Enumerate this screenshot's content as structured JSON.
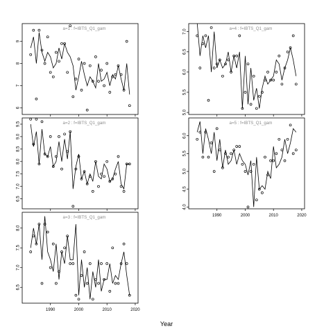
{
  "figure": {
    "xlabel": "Year"
  },
  "chart_data": [
    {
      "type": "line",
      "title": "a=1 : f=IBTS_Q1_gam",
      "xlim": [
        1980,
        2021
      ],
      "ylim": [
        5.7,
        9.8
      ],
      "x_ticks": [
        1990,
        2000,
        2010,
        2020
      ],
      "y_ticks": [
        6,
        7,
        8,
        9
      ],
      "show_x_tick_labels": false,
      "years": [
        1983,
        1984,
        1985,
        1986,
        1987,
        1988,
        1989,
        1990,
        1991,
        1992,
        1993,
        1994,
        1995,
        1996,
        1997,
        1998,
        1999,
        2000,
        2001,
        2002,
        2003,
        2004,
        2005,
        2006,
        2007,
        2008,
        2009,
        2010,
        2011,
        2012,
        2013,
        2014,
        2015,
        2016,
        2017,
        2018
      ],
      "series": [
        {
          "role": "fitted",
          "values": [
            8.7,
            9.2,
            8.0,
            9.4,
            8.5,
            8.1,
            8.5,
            8.3,
            7.8,
            8.0,
            8.7,
            8.2,
            8.9,
            8.5,
            8.3,
            7.9,
            6.8,
            7.4,
            8.1,
            7.5,
            7.0,
            7.4,
            7.2,
            6.9,
            8.0,
            7.2,
            7.3,
            7.6,
            7.0,
            7.5,
            7.3,
            7.9,
            7.3,
            6.8,
            8.0,
            6.6
          ]
        },
        {
          "role": "observed",
          "values": [
            8.4,
            9.5,
            6.4,
            9.5,
            8.6,
            8.0,
            9.2,
            7.6,
            7.4,
            8.5,
            8.1,
            8.9,
            8.9,
            7.6,
            9.7,
            6.5,
            7.3,
            8.2,
            6.8,
            8.0,
            5.9,
            7.9,
            7.2,
            8.3,
            7.2,
            7.7,
            7.0,
            8.0,
            6.7,
            7.4,
            7.5,
            7.9,
            7.5,
            6.8,
            9.0,
            6.1
          ]
        }
      ]
    },
    {
      "type": "line",
      "title": "a=2 : f=IBTS_Q1_gam",
      "xlim": [
        1980,
        2021
      ],
      "ylim": [
        6.1,
        9.75
      ],
      "x_ticks": [
        1990,
        2000,
        2010,
        2020
      ],
      "y_ticks": [
        6.5,
        7.0,
        7.5,
        8.0,
        8.5,
        9.0,
        9.5
      ],
      "show_x_tick_labels": false,
      "years": [
        1983,
        1984,
        1985,
        1986,
        1987,
        1988,
        1989,
        1990,
        1991,
        1992,
        1993,
        1994,
        1995,
        1996,
        1997,
        1998,
        1999,
        2000,
        2001,
        2002,
        2003,
        2004,
        2005,
        2006,
        2007,
        2008,
        2009,
        2010,
        2011,
        2012,
        2013,
        2014,
        2015,
        2016,
        2017,
        2018
      ],
      "series": [
        {
          "role": "fitted",
          "values": [
            9.5,
            8.6,
            9.2,
            7.9,
            9.3,
            8.3,
            8.2,
            8.6,
            7.8,
            8.0,
            8.8,
            8.0,
            8.9,
            8.1,
            9.2,
            6.9,
            7.8,
            8.3,
            7.3,
            7.6,
            7.1,
            7.5,
            7.2,
            8.0,
            7.4,
            7.3,
            7.9,
            7.7,
            7.2,
            7.3,
            7.7,
            8.0,
            7.1,
            6.9,
            7.9,
            7.9
          ]
        },
        {
          "role": "observed",
          "values": [
            9.7,
            8.7,
            9.7,
            7.9,
            9.6,
            8.3,
            8.2,
            9.0,
            7.8,
            8.2,
            9.0,
            7.7,
            9.1,
            8.4,
            9.2,
            6.2,
            7.7,
            8.2,
            7.3,
            7.6,
            7.1,
            7.4,
            6.8,
            8.0,
            7.0,
            7.5,
            7.4,
            8.0,
            7.2,
            7.3,
            7.5,
            8.2,
            7.0,
            6.8,
            7.9,
            7.9
          ]
        }
      ]
    },
    {
      "type": "line",
      "title": "a=3 : f=IBTS_Q1_gam",
      "xlim": [
        1980,
        2021
      ],
      "ylim": [
        6.1,
        8.4
      ],
      "x_ticks": [
        1990,
        2000,
        2010,
        2020
      ],
      "y_ticks": [
        6.5,
        7.0,
        7.5,
        8.0
      ],
      "show_x_tick_labels": true,
      "years": [
        1983,
        1984,
        1985,
        1986,
        1987,
        1988,
        1989,
        1990,
        1991,
        1992,
        1993,
        1994,
        1995,
        1996,
        1997,
        1998,
        1999,
        2000,
        2001,
        2002,
        2003,
        2004,
        2005,
        2006,
        2007,
        2008,
        2009,
        2010,
        2011,
        2012,
        2013,
        2014,
        2015,
        2016,
        2017,
        2018
      ],
      "series": [
        {
          "role": "fitted",
          "values": [
            7.5,
            8.0,
            7.6,
            8.1,
            7.2,
            8.3,
            7.4,
            7.2,
            6.9,
            7.6,
            6.7,
            7.4,
            7.1,
            7.8,
            7.2,
            7.2,
            8.1,
            6.3,
            7.2,
            6.5,
            7.0,
            6.2,
            6.9,
            6.5,
            7.2,
            6.4,
            6.7,
            6.7,
            7.1,
            6.6,
            6.8,
            6.7,
            7.1,
            7.4,
            6.8,
            6.3
          ]
        },
        {
          "role": "observed",
          "values": [
            7.4,
            7.8,
            7.6,
            8.1,
            6.6,
            8.1,
            7.9,
            7.0,
            7.6,
            6.6,
            6.9,
            7.4,
            7.5,
            7.8,
            7.1,
            7.1,
            6.3,
            6.2,
            6.8,
            7.4,
            6.6,
            7.1,
            6.2,
            6.7,
            6.6,
            7.1,
            6.7,
            7.1,
            6.4,
            7.5,
            6.6,
            6.6,
            7.1,
            7.6,
            7.1,
            6.3
          ]
        }
      ]
    },
    {
      "type": "line",
      "title": "a=4 : f=IBTS_Q1_gam",
      "xlim": [
        1980,
        2021
      ],
      "ylim": [
        4.95,
        7.2
      ],
      "x_ticks": [
        1990,
        2000,
        2010,
        2020
      ],
      "y_ticks": [
        5.0,
        5.5,
        6.0,
        6.5,
        7.0
      ],
      "show_x_tick_labels": false,
      "years": [
        1983,
        1984,
        1985,
        1986,
        1987,
        1988,
        1989,
        1990,
        1991,
        1992,
        1993,
        1994,
        1995,
        1996,
        1997,
        1998,
        1999,
        2000,
        2001,
        2002,
        2003,
        2004,
        2005,
        2006,
        2007,
        2008,
        2009,
        2010,
        2011,
        2012,
        2013,
        2014,
        2015,
        2016,
        2017,
        2018
      ],
      "series": [
        {
          "role": "fitted",
          "values": [
            7.6,
            6.4,
            6.9,
            6.6,
            6.9,
            6.0,
            7.0,
            6.1,
            6.3,
            6.1,
            6.2,
            6.5,
            6.0,
            6.4,
            6.1,
            6.5,
            5.1,
            6.4,
            5.2,
            6.1,
            5.3,
            5.6,
            5.1,
            5.6,
            5.9,
            5.7,
            5.8,
            5.9,
            6.3,
            6.2,
            5.8,
            6.1,
            6.3,
            6.6,
            6.3,
            5.9
          ]
        },
        {
          "role": "observed",
          "values": [
            6.9,
            6.1,
            6.7,
            6.9,
            5.3,
            7.1,
            6.1,
            6.2,
            6.3,
            5.9,
            6.2,
            6.3,
            6.0,
            6.4,
            6.4,
            6.9,
            5.1,
            5.5,
            6.2,
            5.2,
            5.9,
            5.1,
            5.4,
            5.5,
            5.8,
            6.0,
            5.8,
            5.8,
            6.0,
            6.4,
            5.7,
            6.1,
            6.5,
            6.6,
            6.9,
            5.7
          ]
        }
      ]
    },
    {
      "type": "line",
      "title": "a=5 : f=IBTS_Q1_gam",
      "xlim": [
        1980,
        2021
      ],
      "ylim": [
        3.95,
        6.5
      ],
      "x_ticks": [
        1990,
        2000,
        2010,
        2020
      ],
      "y_ticks": [
        4.0,
        4.5,
        5.0,
        5.5,
        6.0
      ],
      "show_x_tick_labels": true,
      "years": [
        1983,
        1984,
        1985,
        1986,
        1987,
        1988,
        1989,
        1990,
        1991,
        1992,
        1993,
        1994,
        1995,
        1996,
        1997,
        1998,
        1999,
        2000,
        2001,
        2002,
        2003,
        2004,
        2005,
        2006,
        2007,
        2008,
        2009,
        2010,
        2011,
        2012,
        2013,
        2014,
        2015,
        2016,
        2017,
        2018
      ],
      "series": [
        {
          "role": "fitted",
          "values": [
            6.1,
            6.4,
            5.5,
            6.2,
            5.9,
            5.5,
            6.1,
            5.3,
            5.9,
            5.1,
            5.6,
            5.2,
            5.3,
            5.6,
            5.2,
            5.5,
            5.3,
            5.2,
            4.9,
            5.3,
            4.0,
            5.4,
            4.5,
            4.6,
            4.5,
            5.0,
            4.8,
            5.7,
            5.1,
            5.2,
            5.4,
            5.9,
            5.5,
            5.8,
            6.2,
            6.1
          ]
        },
        {
          "role": "observed",
          "values": [
            5.9,
            6.1,
            5.4,
            6.1,
            5.4,
            5.8,
            5.0,
            6.2,
            5.6,
            5.1,
            5.5,
            5.4,
            5.5,
            5.6,
            5.7,
            5.7,
            5.2,
            5.0,
            4.0,
            5.0,
            5.2,
            4.2,
            4.5,
            4.4,
            5.4,
            4.9,
            5.3,
            5.3,
            5.5,
            5.9,
            5.6,
            5.3,
            5.9,
            6.3,
            5.5,
            5.6
          ]
        }
      ]
    }
  ]
}
